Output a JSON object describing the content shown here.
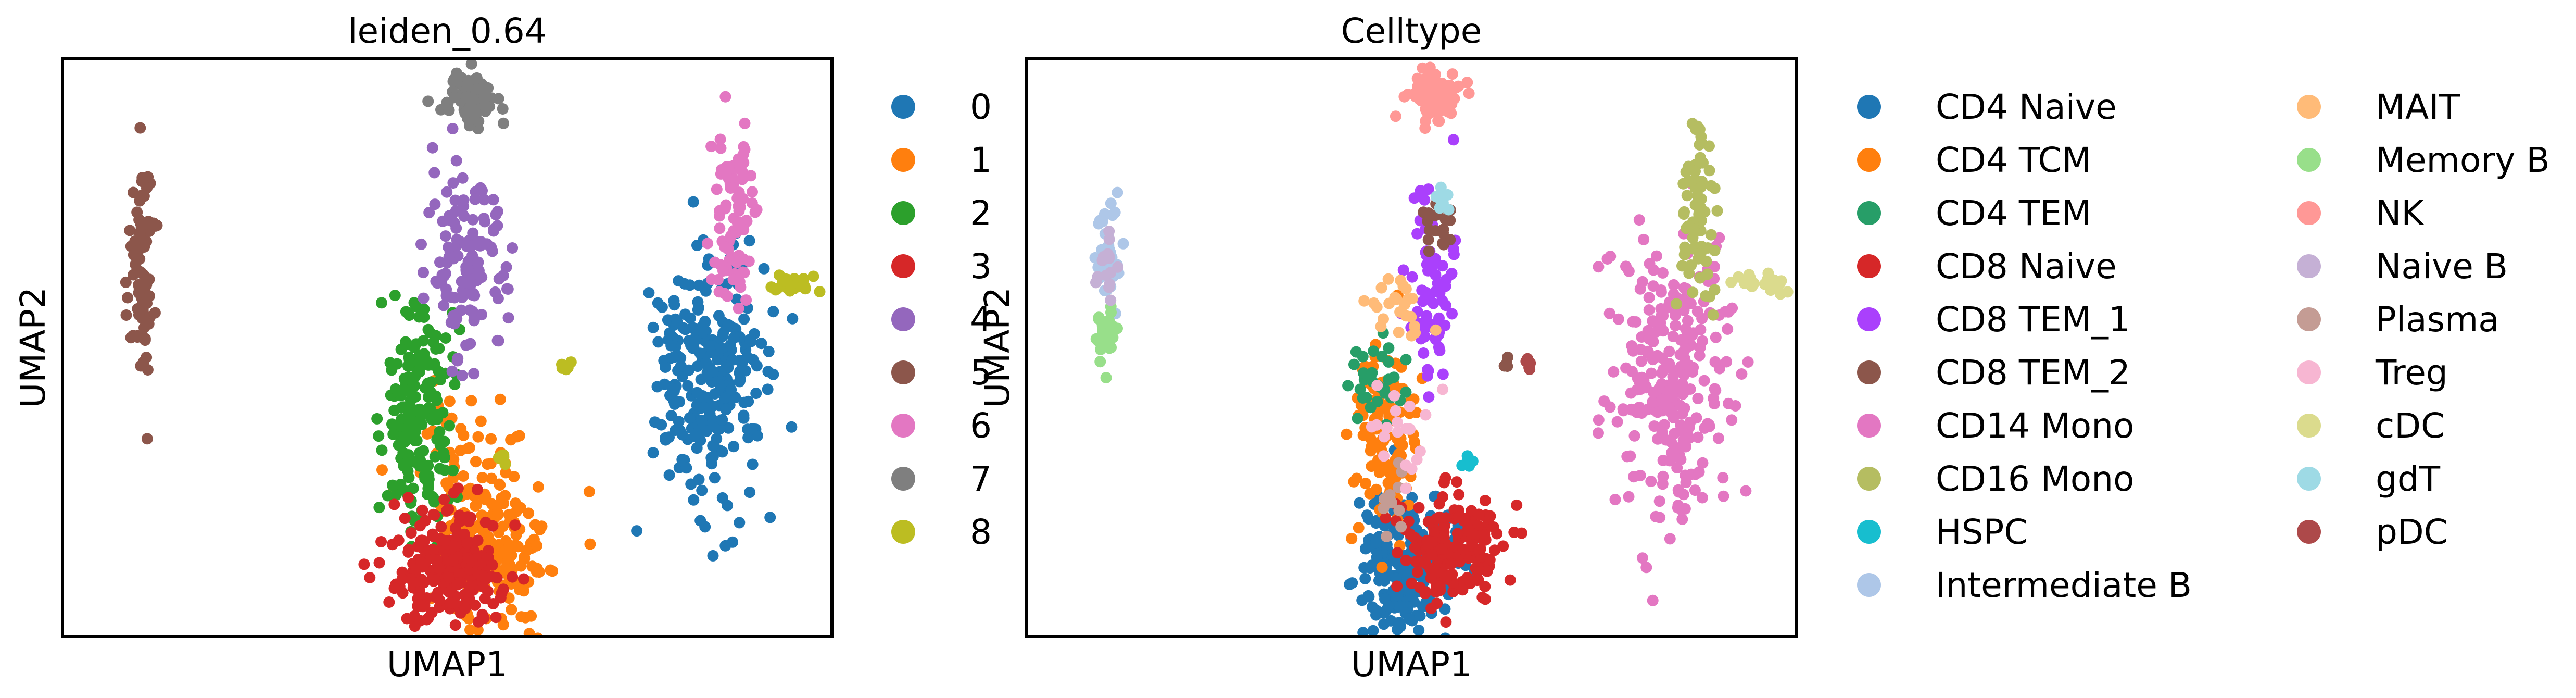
{
  "chart_data": [
    {
      "type": "scatter",
      "title": "leiden_0.64",
      "xlabel": "UMAP1",
      "ylabel": "UMAP2",
      "grid": false,
      "legend_placement": "right",
      "series": [
        {
          "name": "0",
          "color": "#1f77b4",
          "clusters": [
            {
              "x": 12.6,
              "y": 5.0,
              "sx": 0.55,
              "sy": 1.45,
              "n": 260
            }
          ]
        },
        {
          "name": "1",
          "color": "#ff7f0e",
          "clusters": [
            {
              "x": 8.4,
              "y": 1.4,
              "sx": 0.55,
              "sy": 0.7,
              "n": 190
            },
            {
              "x": 7.8,
              "y": 2.9,
              "sx": 0.5,
              "sy": 1.0,
              "n": 60
            }
          ]
        },
        {
          "name": "2",
          "color": "#2ca02c",
          "clusters": [
            {
              "x": 6.95,
              "y": 4.2,
              "sx": 0.35,
              "sy": 1.15,
              "n": 180
            }
          ]
        },
        {
          "name": "3",
          "color": "#d62728",
          "clusters": [
            {
              "x": 7.45,
              "y": 1.0,
              "sx": 0.55,
              "sy": 0.65,
              "n": 220
            }
          ]
        },
        {
          "name": "4",
          "color": "#9467bd",
          "clusters": [
            {
              "x": 7.85,
              "y": 7.5,
              "sx": 0.35,
              "sy": 1.0,
              "n": 130
            }
          ]
        },
        {
          "name": "5",
          "color": "#8c564b",
          "clusters": [
            {
              "x": 1.55,
              "y": 7.2,
              "sx": 0.13,
              "sy": 1.25,
              "n": 80
            }
          ]
        },
        {
          "name": "6",
          "color": "#e377c2",
          "clusters": [
            {
              "x": 13.1,
              "y": 8.4,
              "sx": 0.22,
              "sy": 0.9,
              "n": 90
            }
          ]
        },
        {
          "name": "7",
          "color": "#7f7f7f",
          "clusters": [
            {
              "x": 8.0,
              "y": 11.0,
              "sx": 0.3,
              "sy": 0.28,
              "n": 80
            }
          ]
        },
        {
          "name": "8",
          "color": "#bcbd22",
          "clusters": [
            {
              "x": 14.3,
              "y": 7.0,
              "sx": 0.25,
              "sy": 0.12,
              "n": 25
            },
            {
              "x": 9.8,
              "y": 5.3,
              "sx": 0.05,
              "sy": 0.08,
              "n": 6
            },
            {
              "x": 8.6,
              "y": 3.3,
              "sx": 0.05,
              "sy": 0.1,
              "n": 6
            }
          ]
        }
      ]
    },
    {
      "type": "scatter",
      "title": "Celltype",
      "xlabel": "UMAP1",
      "ylabel": "UMAP2",
      "grid": false,
      "legend_placement": "right",
      "series": [
        {
          "name": "CD4 Naive",
          "color": "#1f77b4",
          "clusters": [
            {
              "x": 7.4,
              "y": 1.0,
              "sx": 0.5,
              "sy": 0.7,
              "n": 220
            }
          ]
        },
        {
          "name": "CD4 TCM",
          "color": "#ff7f0e",
          "clusters": [
            {
              "x": 7.0,
              "y": 3.6,
              "sx": 0.35,
              "sy": 1.2,
              "n": 110
            }
          ]
        },
        {
          "name": "CD4 TEM",
          "color": "#279e68",
          "clusters": [
            {
              "x": 6.9,
              "y": 4.9,
              "sx": 0.3,
              "sy": 0.4,
              "n": 30
            }
          ]
        },
        {
          "name": "CD8 Naive",
          "color": "#d62728",
          "clusters": [
            {
              "x": 8.4,
              "y": 1.4,
              "sx": 0.5,
              "sy": 0.6,
              "n": 170
            }
          ]
        },
        {
          "name": "CD8 TEM_1",
          "color": "#aa40fc",
          "clusters": [
            {
              "x": 7.85,
              "y": 7.0,
              "sx": 0.25,
              "sy": 1.0,
              "n": 70
            }
          ]
        },
        {
          "name": "CD8 TEM_2",
          "color": "#8c564b",
          "clusters": [
            {
              "x": 8.05,
              "y": 8.3,
              "sx": 0.15,
              "sy": 0.25,
              "n": 20
            },
            {
              "x": 9.35,
              "y": 5.3,
              "sx": 0.04,
              "sy": 0.06,
              "n": 4
            }
          ]
        },
        {
          "name": "CD14 Mono",
          "color": "#e377c2",
          "clusters": [
            {
              "x": 12.6,
              "y": 5.0,
              "sx": 0.55,
              "sy": 1.4,
              "n": 260
            }
          ]
        },
        {
          "name": "CD16 Mono",
          "color": "#b5bd61",
          "clusters": [
            {
              "x": 13.1,
              "y": 8.5,
              "sx": 0.18,
              "sy": 0.9,
              "n": 70
            }
          ]
        },
        {
          "name": "HSPC",
          "color": "#17becf",
          "clusters": [
            {
              "x": 8.6,
              "y": 3.2,
              "sx": 0.05,
              "sy": 0.1,
              "n": 5
            }
          ]
        },
        {
          "name": "Intermediate B",
          "color": "#aec7e8",
          "clusters": [
            {
              "x": 1.6,
              "y": 7.7,
              "sx": 0.12,
              "sy": 0.6,
              "n": 40
            }
          ]
        },
        {
          "name": "MAIT",
          "color": "#ffbb78",
          "clusters": [
            {
              "x": 7.2,
              "y": 6.5,
              "sx": 0.25,
              "sy": 0.3,
              "n": 25
            }
          ]
        },
        {
          "name": "Memory B",
          "color": "#98df8a",
          "clusters": [
            {
              "x": 1.55,
              "y": 5.9,
              "sx": 0.1,
              "sy": 0.25,
              "n": 30
            }
          ]
        },
        {
          "name": "NK",
          "color": "#ff9896",
          "clusters": [
            {
              "x": 8.0,
              "y": 11.0,
              "sx": 0.3,
              "sy": 0.28,
              "n": 80
            }
          ]
        },
        {
          "name": "Naive B",
          "color": "#c5b0d5",
          "clusters": [
            {
              "x": 1.6,
              "y": 7.2,
              "sx": 0.1,
              "sy": 0.5,
              "n": 15
            }
          ]
        },
        {
          "name": "Plasma",
          "color": "#c49c94",
          "clusters": [
            {
              "x": 7.1,
              "y": 2.3,
              "sx": 0.15,
              "sy": 0.5,
              "n": 10
            }
          ]
        },
        {
          "name": "Treg",
          "color": "#f7b6d2",
          "clusters": [
            {
              "x": 7.3,
              "y": 3.6,
              "sx": 0.3,
              "sy": 0.6,
              "n": 20
            }
          ]
        },
        {
          "name": "cDC",
          "color": "#dbdb8d",
          "clusters": [
            {
              "x": 14.3,
              "y": 7.0,
              "sx": 0.25,
              "sy": 0.12,
              "n": 25
            }
          ]
        },
        {
          "name": "gdT",
          "color": "#9edae5",
          "clusters": [
            {
              "x": 8.1,
              "y": 8.8,
              "sx": 0.1,
              "sy": 0.15,
              "n": 8
            }
          ]
        },
        {
          "name": "pDC",
          "color": "#ad494a",
          "clusters": [
            {
              "x": 9.8,
              "y": 5.3,
              "sx": 0.05,
              "sy": 0.08,
              "n": 6
            }
          ]
        }
      ]
    }
  ]
}
